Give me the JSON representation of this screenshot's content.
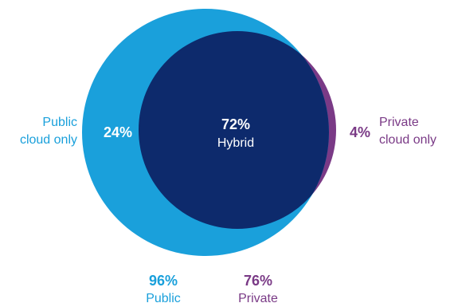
{
  "colors": {
    "public": "#1aa0db",
    "private": "#7a3a86",
    "hybrid": "#0d2a6c",
    "label_on_dark": "#ffffff",
    "background": "#ffffff"
  },
  "segments": {
    "public_only": {
      "label_line1": "Public",
      "label_line2": "cloud only",
      "value": "24%"
    },
    "hybrid": {
      "value": "72%",
      "label": "Hybrid"
    },
    "private_only": {
      "value": "4%",
      "label_line1": "Private",
      "label_line2": "cloud only"
    }
  },
  "totals": {
    "public": {
      "value": "96%",
      "label": "Public"
    },
    "private": {
      "value": "76%",
      "label": "Private"
    }
  }
}
